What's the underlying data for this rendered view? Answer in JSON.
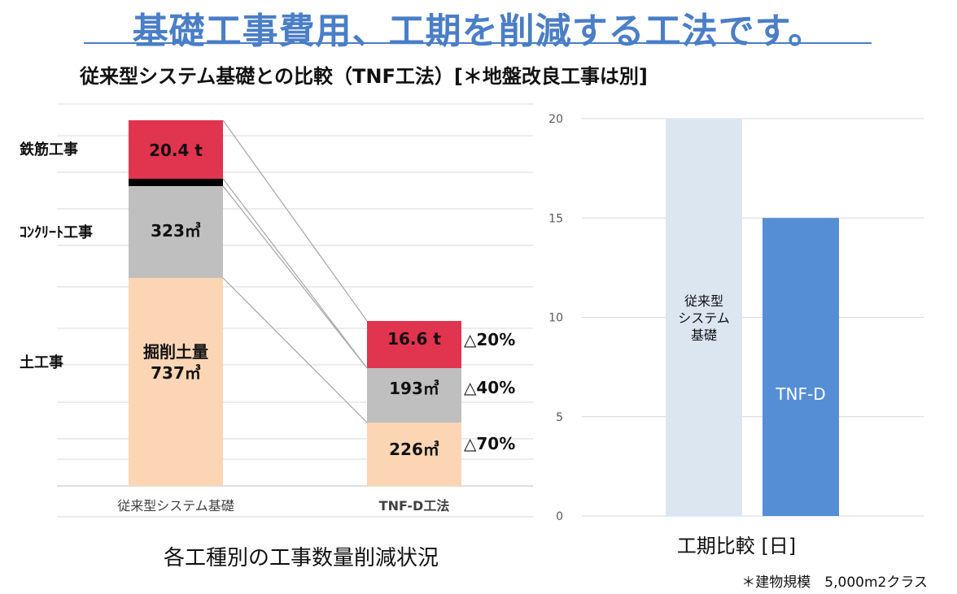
{
  "header": {
    "title": "基礎工事費用、工期を削減する工法です。",
    "subtitle": "従来型システム基礎との比較（TNF工法）[＊地盤改良工事は別]"
  },
  "chart_data": [
    {
      "type": "bar",
      "stacked": true,
      "caption": "各工種別の工事数量削減状況",
      "categories": [
        "従来型システム基礎",
        "TNF-D工法"
      ],
      "series": [
        {
          "name": "土工事",
          "values": [
            737,
            226
          ],
          "labels": [
            "掘削土量\n737㎥",
            "226㎥"
          ],
          "color": "#fcd5b4"
        },
        {
          "name": "コンクリート工事",
          "values": [
            323,
            193
          ],
          "labels": [
            "323㎥",
            "193㎥"
          ],
          "color": "#bfbfbf"
        },
        {
          "name": "separator",
          "values": [
            1,
            0
          ],
          "labels": [
            "",
            ""
          ],
          "color": "#000000"
        },
        {
          "name": "鉄筋工事",
          "values": [
            20.4,
            16.6
          ],
          "labels": [
            "20.4 t",
            "16.6 t"
          ],
          "color": "#e0344f"
        }
      ],
      "row_labels": [
        "鉄筋工事",
        "ｺﾝｸﾘｰﾄ工事",
        "土工事"
      ],
      "reductions": [
        "△20%",
        "△40%",
        "△70%"
      ]
    },
    {
      "type": "bar",
      "caption": "工期比較 [日]",
      "categories": [
        "従来型\nシステム\n基礎",
        "TNF-D"
      ],
      "values": [
        20,
        15
      ],
      "colors": [
        "#dce6f1",
        "#558ed5"
      ],
      "label_colors": [
        "#111111",
        "#ffffff"
      ],
      "ylim": [
        0,
        20
      ],
      "yticks": [
        0,
        5,
        10,
        15,
        20
      ]
    }
  ],
  "footnote": "＊建物規模　5,000m2クラス"
}
